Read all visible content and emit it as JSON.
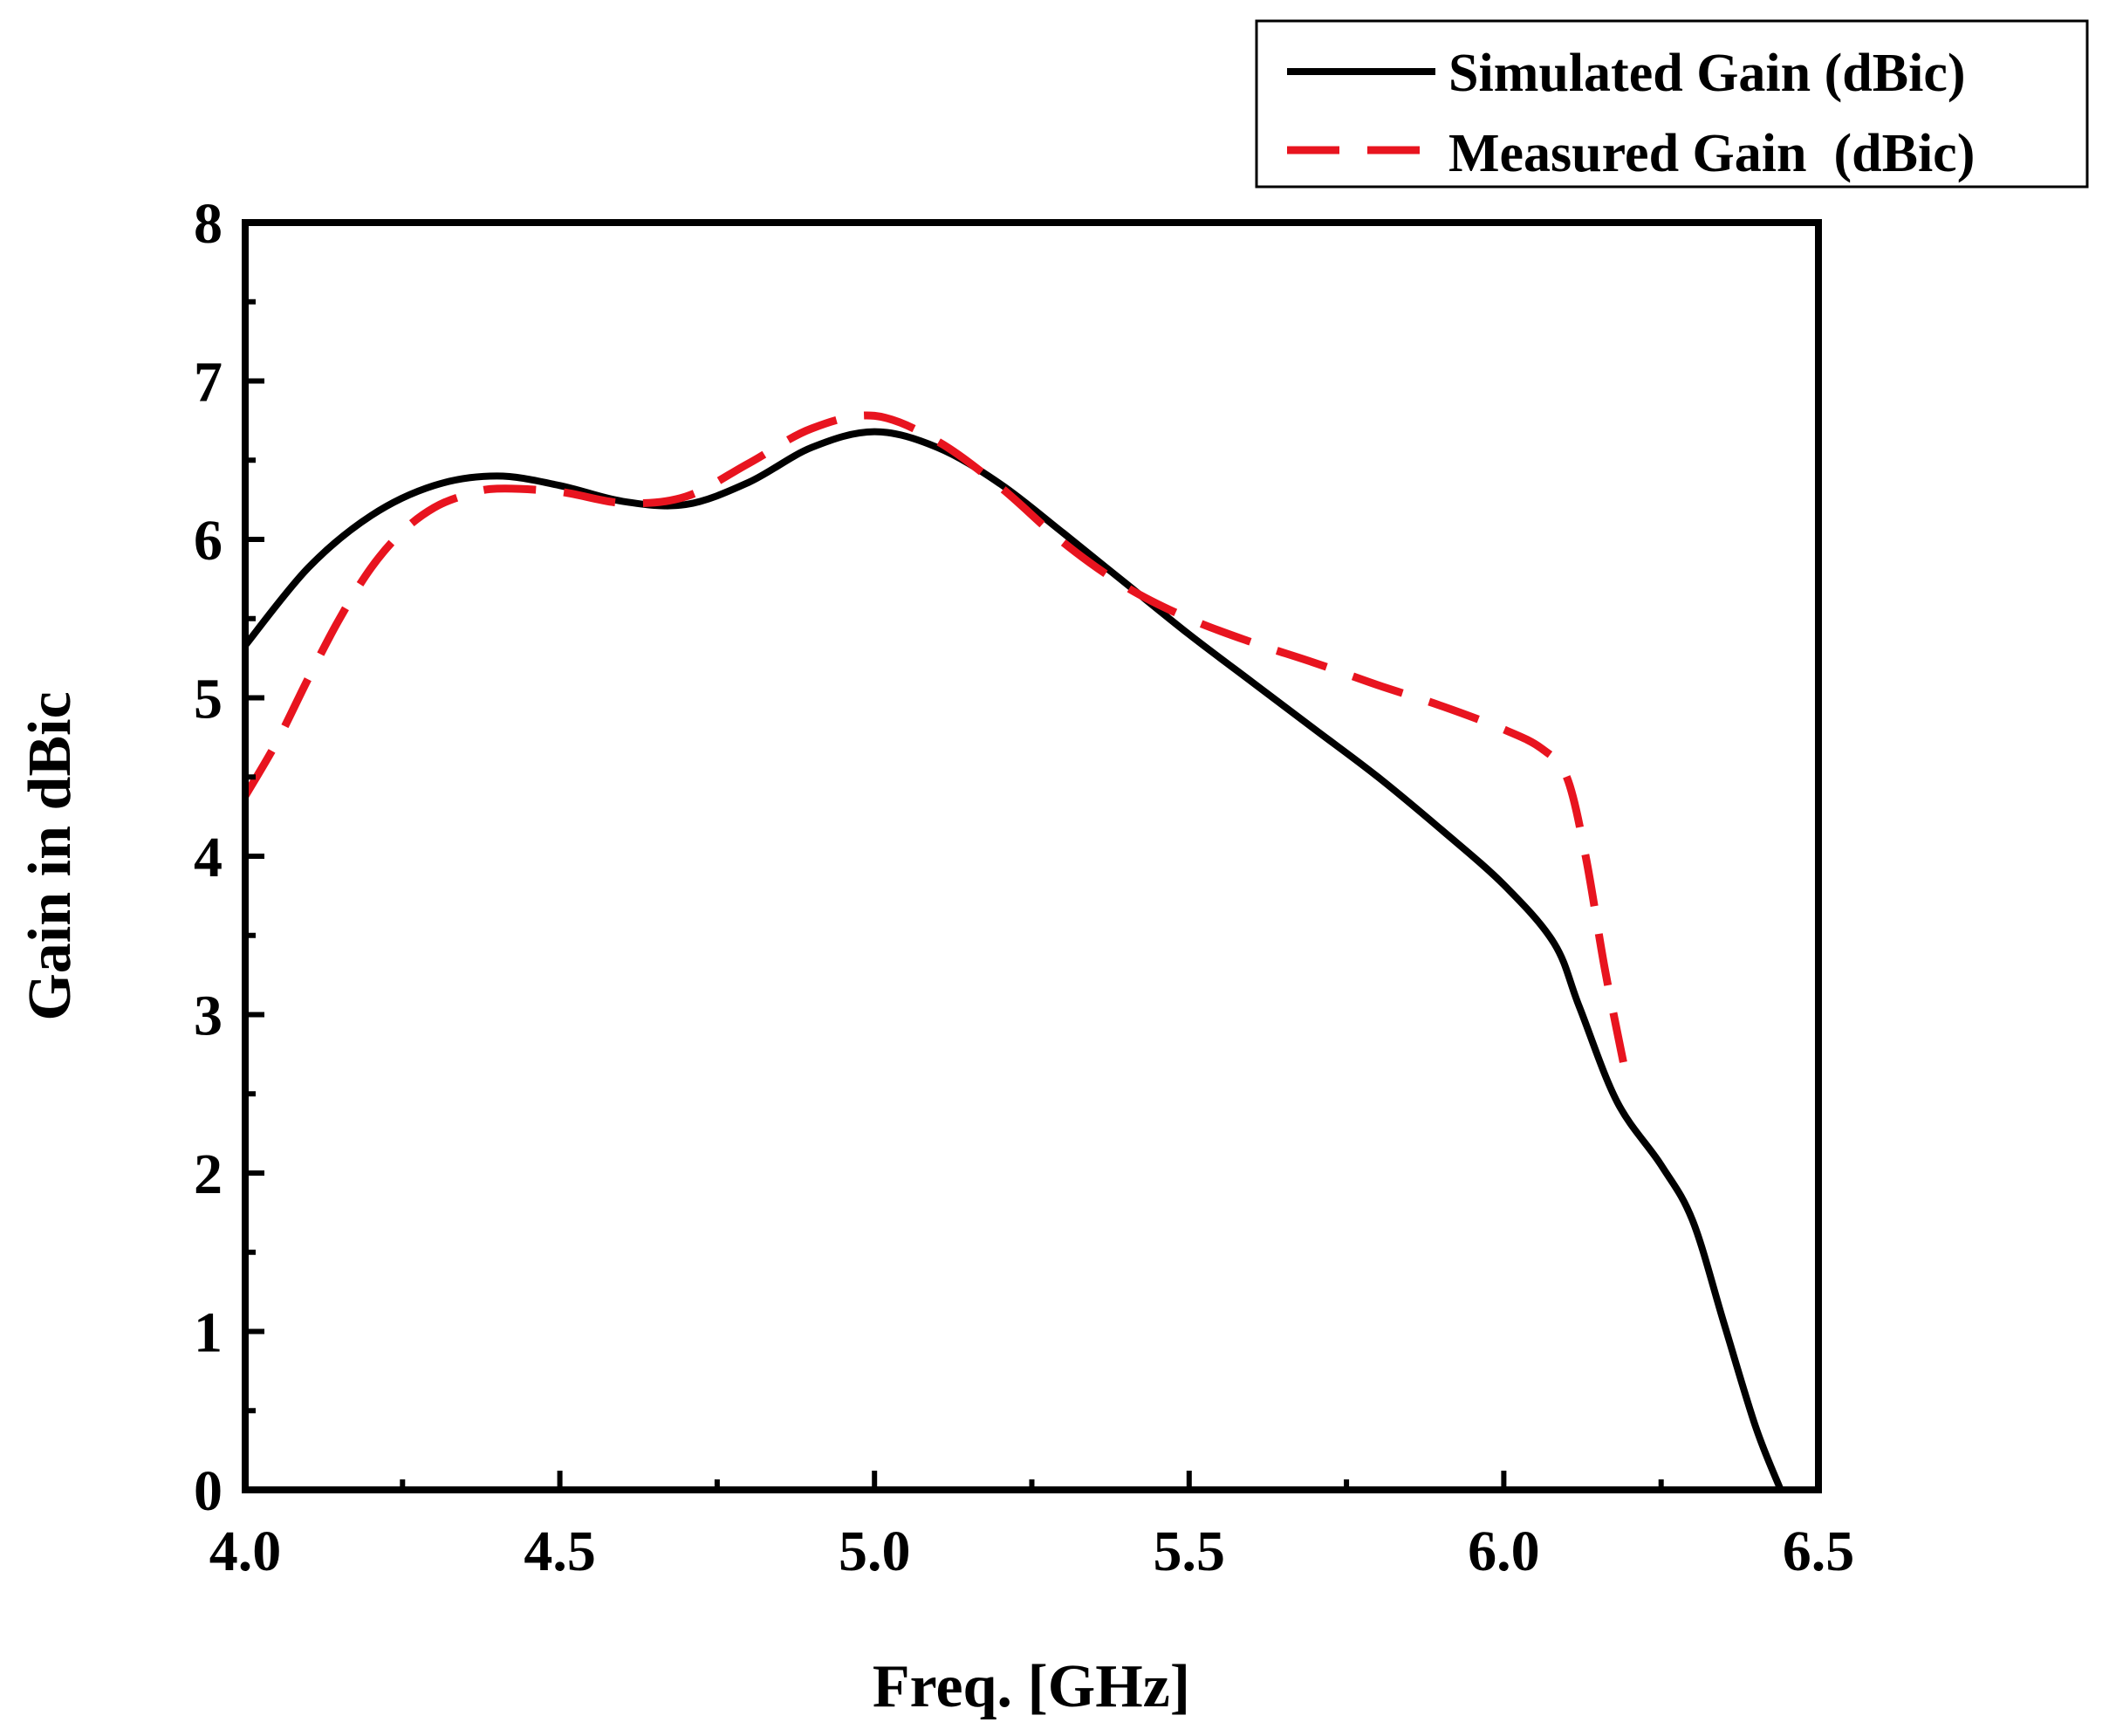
{
  "chart_data": {
    "type": "line",
    "title": "",
    "xlabel": "Freq. [GHz]",
    "ylabel": "Gain in dBic",
    "xlim": [
      4.0,
      6.5
    ],
    "ylim": [
      0,
      8
    ],
    "x_ticks": [
      4.0,
      4.5,
      5.0,
      5.5,
      6.0,
      6.5
    ],
    "x_tick_labels": [
      "4.0",
      "4.5",
      "5.0",
      "5.5",
      "6.0",
      "6.5"
    ],
    "y_ticks": [
      0,
      1,
      2,
      3,
      4,
      5,
      6,
      7,
      8
    ],
    "y_tick_labels": [
      "0",
      "1",
      "2",
      "3",
      "4",
      "5",
      "6",
      "7",
      "8"
    ],
    "grid": false,
    "legend_position": "top-right, outside plot",
    "series": [
      {
        "name": "Simulated Gain (dBic)",
        "color": "#000000",
        "style": "solid",
        "x": [
          4.0,
          4.1,
          4.2,
          4.3,
          4.4,
          4.5,
          4.6,
          4.7,
          4.8,
          4.9,
          5.0,
          5.1,
          5.2,
          5.3,
          5.4,
          5.5,
          5.6,
          5.7,
          5.8,
          5.9,
          6.0,
          6.08,
          6.12,
          6.18,
          6.25,
          6.3,
          6.35,
          6.4,
          6.44
        ],
        "y": [
          5.33,
          5.82,
          6.15,
          6.34,
          6.4,
          6.34,
          6.24,
          6.22,
          6.36,
          6.58,
          6.68,
          6.58,
          6.35,
          6.04,
          5.72,
          5.4,
          5.1,
          4.8,
          4.5,
          4.17,
          3.82,
          3.45,
          3.05,
          2.45,
          2.05,
          1.7,
          1.05,
          0.4,
          0.0
        ]
      },
      {
        "name": "Measured Gain  (dBic)",
        "color": "#e8141f",
        "style": "dashed",
        "x": [
          4.0,
          4.05,
          4.1,
          4.15,
          4.2,
          4.25,
          4.3,
          4.35,
          4.4,
          4.5,
          4.6,
          4.7,
          4.8,
          4.9,
          5.0,
          5.1,
          5.2,
          5.3,
          5.4,
          5.5,
          5.6,
          5.7,
          5.8,
          5.9,
          6.0,
          6.06,
          6.1,
          6.13,
          6.16,
          6.19
        ],
        "y": [
          4.38,
          4.72,
          5.12,
          5.5,
          5.82,
          6.05,
          6.2,
          6.28,
          6.32,
          6.3,
          6.23,
          6.27,
          6.48,
          6.7,
          6.78,
          6.62,
          6.33,
          5.98,
          5.7,
          5.5,
          5.35,
          5.22,
          5.08,
          4.95,
          4.8,
          4.68,
          4.5,
          4.0,
          3.3,
          2.7
        ]
      }
    ]
  }
}
